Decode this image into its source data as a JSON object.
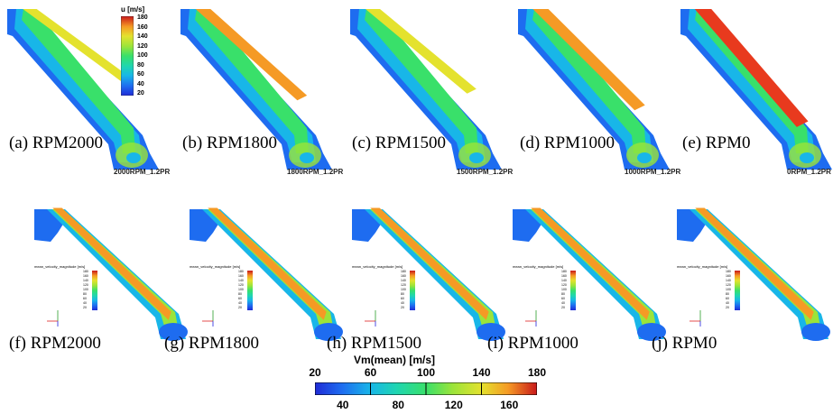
{
  "colormap": [
    "#1f2bd6",
    "#1e6cf0",
    "#18b6e8",
    "#1fd6b0",
    "#39e06a",
    "#9be43a",
    "#e4e22e",
    "#f59a25",
    "#e83a1e",
    "#c8181a"
  ],
  "panels_top": [
    {
      "caption": "(a) RPM2000",
      "tag": "2000RPM_1.2PR",
      "core": 0.25
    },
    {
      "caption": "(b) RPM1800",
      "tag": "1800RPM_1.2PR",
      "core": 0.5
    },
    {
      "caption": "(c) RPM1500",
      "tag": "1500RPM_1.2PR",
      "core": 0.4
    },
    {
      "caption": "(d) RPM1000",
      "tag": "1000RPM_1.2PR",
      "core": 0.65
    },
    {
      "caption": "(e) RPM0",
      "tag": "0RPM_1.2PR",
      "core": 0.9
    }
  ],
  "panels_bottom": [
    {
      "caption": "(f) RPM2000"
    },
    {
      "caption": "(g) RPM1800"
    },
    {
      "caption": "(h) RPM1500"
    },
    {
      "caption": "(i) RPM1000"
    },
    {
      "caption": "(j) RPM0"
    }
  ],
  "top_legend": {
    "title": "u [m/s]",
    "ticks": [
      "180",
      "160",
      "140",
      "120",
      "100",
      "80",
      "60",
      "40",
      "20"
    ]
  },
  "mini_legend": {
    "title": "mean_velocity_magnitude [m/s]",
    "ticks": [
      "180",
      "160",
      "140",
      "120",
      "100",
      "80",
      "60",
      "40",
      "20"
    ]
  },
  "colorbar": {
    "title": "Vm(mean) [m/s]",
    "top_ticks": [
      "20",
      "60",
      "100",
      "140",
      "180"
    ],
    "bottom_ticks": [
      "40",
      "80",
      "120",
      "160"
    ]
  }
}
